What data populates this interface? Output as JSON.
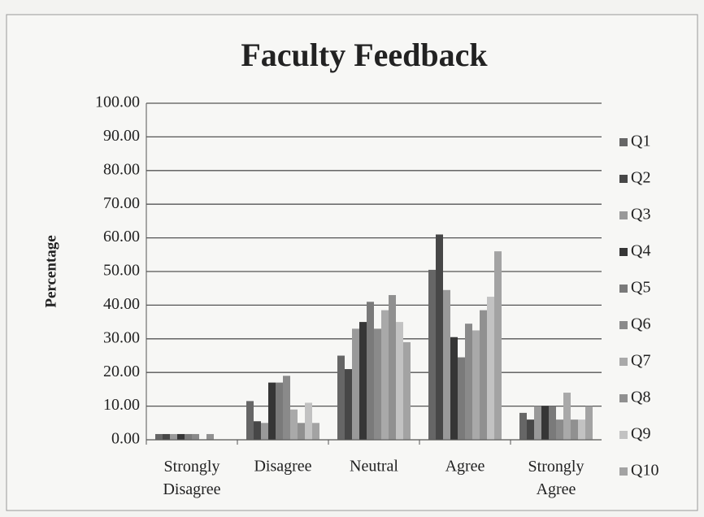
{
  "chart_data": {
    "type": "bar",
    "title": "Faculty Feedback",
    "y_label": "Percentage",
    "categories": [
      "Strongly Disagree",
      "Disagree",
      "Neutral",
      "Agree",
      "Strongly Agree"
    ],
    "series": [
      {
        "name": "Q1",
        "color": "#666666",
        "values": [
          1.7,
          11.5,
          25,
          50.5,
          8
        ]
      },
      {
        "name": "Q2",
        "color": "#474747",
        "values": [
          1.7,
          5.5,
          21,
          61,
          6
        ]
      },
      {
        "name": "Q3",
        "color": "#999999",
        "values": [
          1.7,
          5,
          33,
          44.5,
          10
        ]
      },
      {
        "name": "Q4",
        "color": "#363636",
        "values": [
          1.7,
          17,
          35,
          30.5,
          10
        ]
      },
      {
        "name": "Q5",
        "color": "#7a7a7a",
        "values": [
          1.7,
          17,
          41,
          24.5,
          10
        ]
      },
      {
        "name": "Q6",
        "color": "#8a8a8a",
        "values": [
          1.7,
          19,
          33,
          34.5,
          6
        ]
      },
      {
        "name": "Q7",
        "color": "#a9a9a9",
        "values": [
          0,
          9,
          38.5,
          32.5,
          14
        ]
      },
      {
        "name": "Q8",
        "color": "#909090",
        "values": [
          1.7,
          5,
          43,
          38.5,
          6
        ]
      },
      {
        "name": "Q9",
        "color": "#c2c2c2",
        "values": [
          0,
          11,
          35,
          42.5,
          6
        ]
      },
      {
        "name": "Q10",
        "color": "#a3a3a3",
        "values": [
          0,
          5,
          29,
          56,
          10
        ]
      }
    ],
    "ylim": [
      0,
      100
    ],
    "yticks": [
      {
        "value": 0,
        "label": "0.00"
      },
      {
        "value": 10,
        "label": "10.00"
      },
      {
        "value": 20,
        "label": "20.00"
      },
      {
        "value": 30,
        "label": "30.00"
      },
      {
        "value": 40,
        "label": "40.00"
      },
      {
        "value": 50,
        "label": "50.00"
      },
      {
        "value": 60,
        "label": "60.00"
      },
      {
        "value": 70,
        "label": "70.00"
      },
      {
        "value": 80,
        "label": "80.00"
      },
      {
        "value": 90,
        "label": "90.00"
      },
      {
        "value": 100,
        "label": "100.00"
      }
    ],
    "grid": true,
    "legend": "right"
  }
}
